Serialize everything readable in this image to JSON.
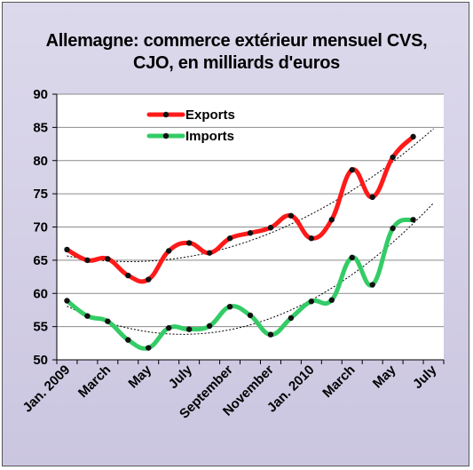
{
  "chart_data": {
    "type": "line",
    "title_line1": "Allemagne: commerce extérieur mensuel CVS,",
    "title_line2": "CJO, en milliards d'euros",
    "x_tick_labels": [
      "Jan. 2009",
      "March",
      "May",
      "July",
      "September",
      "November",
      "Jan. 2010",
      "March",
      "May",
      "July"
    ],
    "x": [
      "Jan. 2009",
      "Feb. 2009",
      "March 2009",
      "Apr. 2009",
      "May 2009",
      "June 2009",
      "July 2009",
      "Aug. 2009",
      "Sep. 2009",
      "Oct. 2009",
      "Nov. 2009",
      "Dec. 2009",
      "Jan. 2010",
      "Feb. 2010",
      "March 2010",
      "Apr. 2010",
      "May 2010",
      "June 2010"
    ],
    "ylim": [
      50,
      90
    ],
    "y_ticks": [
      50,
      55,
      60,
      65,
      70,
      75,
      80,
      85,
      90
    ],
    "grid": "horizontal",
    "legend_position": "top-left",
    "series": [
      {
        "name": "Exports",
        "color": "#ff1a1a",
        "values": [
          66.6,
          65.0,
          65.2,
          62.7,
          62.1,
          66.4,
          67.6,
          66.1,
          68.3,
          69.1,
          69.9,
          71.7,
          68.3,
          71.1,
          78.6,
          74.5,
          80.5,
          83.6
        ]
      },
      {
        "name": "Imports",
        "color": "#33cc66",
        "values": [
          58.9,
          56.6,
          55.8,
          53.0,
          51.8,
          54.8,
          54.6,
          55.1,
          58.0,
          56.7,
          53.8,
          56.3,
          58.8,
          59.0,
          65.4,
          61.3,
          69.8,
          71.1
        ]
      }
    ],
    "trendlines": [
      {
        "series": "Exports",
        "style": "dotted",
        "color": "#000000"
      },
      {
        "series": "Imports",
        "style": "dotted",
        "color": "#000000"
      }
    ]
  }
}
